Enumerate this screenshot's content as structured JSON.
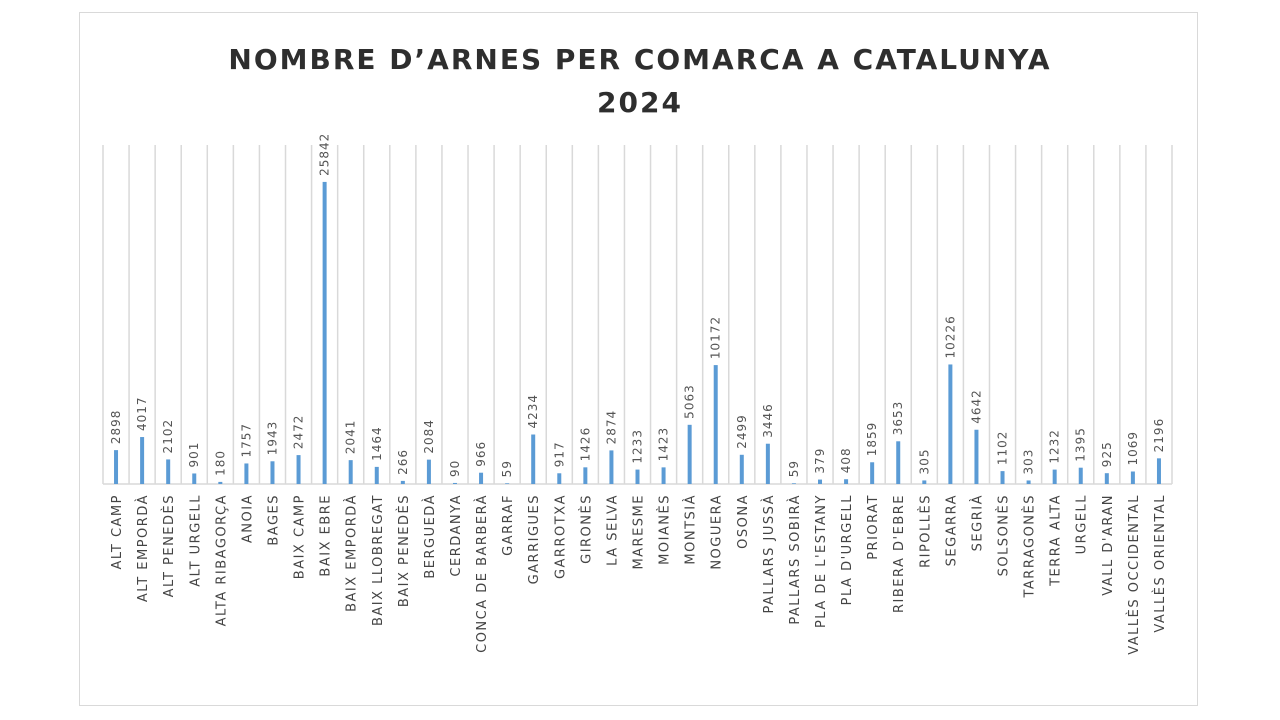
{
  "chart_data": {
    "type": "bar",
    "title": "NOMBRE D’ARNES PER COMARCA A CATALUNYA",
    "subtitle": "2024",
    "xlabel": "",
    "ylabel": "",
    "ylim": [
      0,
      29000
    ],
    "grid": "vertical",
    "legend": "none",
    "bar_color": "#5b9bd5",
    "grid_color": "#d9d9d9",
    "categories": [
      "ALT CAMP",
      "ALT EMPORDÀ",
      "ALT PENEDÈS",
      "ALT URGELL",
      "ALTA RIBAGORÇA",
      "ANOIA",
      "BAGES",
      "BAIX CAMP",
      "BAIX EBRE",
      "BAIX EMPORDÀ",
      "BAIX LLOBREGAT",
      "BAIX PENEDÈS",
      "BERGUEDÀ",
      "CERDANYA",
      "CONCA DE BARBERÀ",
      "GARRAF",
      "GARRIGUES",
      "GARROTXA",
      "GIRONÈS",
      "LA SELVA",
      "MARESME",
      "MOIANÈS",
      "MONTSIÀ",
      "NOGUERA",
      "OSONA",
      "PALLARS JUSSÀ",
      "PALLARS SOBIRÀ",
      "PLA DE L'ESTANY",
      "PLA D'URGELL",
      "PRIORAT",
      "RIBERA D'EBRE",
      "RIPOLLÈS",
      "SEGARRA",
      "SEGRIÀ",
      "SOLSONÈS",
      "TARRAGONÈS",
      "TERRA ALTA",
      "URGELL",
      "VALL D'ARAN",
      "VALLÈS OCCIDENTAL",
      "VALLÈS ORIENTAL"
    ],
    "values": [
      2898,
      4017,
      2102,
      901,
      180,
      1757,
      1943,
      2472,
      25842,
      2041,
      1464,
      266,
      2084,
      90,
      966,
      59,
      4234,
      917,
      1426,
      2874,
      1233,
      1423,
      5063,
      10172,
      2499,
      3446,
      59,
      379,
      408,
      1859,
      3653,
      305,
      10226,
      4642,
      1102,
      303,
      1232,
      1395,
      925,
      1069,
      2196
    ]
  }
}
